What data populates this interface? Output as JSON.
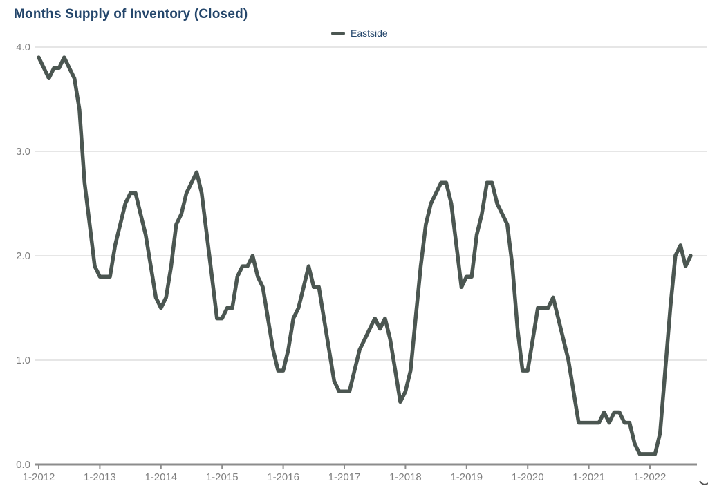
{
  "title": "Months Supply of Inventory (Closed)",
  "legend": {
    "label": "Eastside"
  },
  "colors": {
    "title_text": "#24466b",
    "legend_text": "#24466b",
    "line": "#4b5651",
    "grid": "#cccccc",
    "axis": "#8c8c8c",
    "tick_text": "#7f7f7f"
  },
  "y_axis": {
    "tick_labels": [
      "0.0",
      "1.0",
      "2.0",
      "3.0",
      "4.0"
    ]
  },
  "x_axis": {
    "tick_labels": [
      "1-2012",
      "1-2013",
      "1-2014",
      "1-2015",
      "1-2016",
      "1-2017",
      "1-2018",
      "1-2019",
      "1-2020",
      "1-2021",
      "1-2022"
    ]
  },
  "chart_data": {
    "type": "line",
    "title": "Months Supply of Inventory (Closed)",
    "xlabel": "",
    "ylabel": "",
    "ylim": [
      0,
      4.0
    ],
    "y_ticks": [
      0,
      1,
      2,
      3,
      4
    ],
    "grid": "horizontal",
    "legend_position": "top-center",
    "frequency": "monthly",
    "x_start": "1-2012",
    "x_end": "9-2022",
    "x_tick_labels": [
      "1-2012",
      "1-2013",
      "1-2014",
      "1-2015",
      "1-2016",
      "1-2017",
      "1-2018",
      "1-2019",
      "1-2020",
      "1-2021",
      "1-2022"
    ],
    "x_tick_interval_months": 12,
    "series": [
      {
        "name": "Eastside",
        "values": [
          3.9,
          3.8,
          3.7,
          3.8,
          3.8,
          3.9,
          3.8,
          3.7,
          3.4,
          2.7,
          2.3,
          1.9,
          1.8,
          1.8,
          1.8,
          2.1,
          2.3,
          2.5,
          2.6,
          2.6,
          2.4,
          2.2,
          1.9,
          1.6,
          1.5,
          1.6,
          1.9,
          2.3,
          2.4,
          2.6,
          2.7,
          2.8,
          2.6,
          2.2,
          1.8,
          1.4,
          1.4,
          1.5,
          1.5,
          1.8,
          1.9,
          1.9,
          2.0,
          1.8,
          1.7,
          1.4,
          1.1,
          0.9,
          0.9,
          1.1,
          1.4,
          1.5,
          1.7,
          1.9,
          1.7,
          1.7,
          1.4,
          1.1,
          0.8,
          0.7,
          0.7,
          0.7,
          0.9,
          1.1,
          1.2,
          1.3,
          1.4,
          1.3,
          1.4,
          1.2,
          0.9,
          0.6,
          0.7,
          0.9,
          1.4,
          1.9,
          2.3,
          2.5,
          2.6,
          2.7,
          2.7,
          2.5,
          2.1,
          1.7,
          1.8,
          1.8,
          2.2,
          2.4,
          2.7,
          2.7,
          2.5,
          2.4,
          2.3,
          1.9,
          1.3,
          0.9,
          0.9,
          1.2,
          1.5,
          1.5,
          1.5,
          1.6,
          1.4,
          1.2,
          1.0,
          0.7,
          0.4,
          0.4,
          0.4,
          0.4,
          0.4,
          0.5,
          0.4,
          0.5,
          0.5,
          0.4,
          0.4,
          0.2,
          0.1,
          0.1,
          0.1,
          0.1,
          0.3,
          0.9,
          1.5,
          2.0,
          2.1,
          1.9,
          2.0
        ]
      }
    ]
  }
}
